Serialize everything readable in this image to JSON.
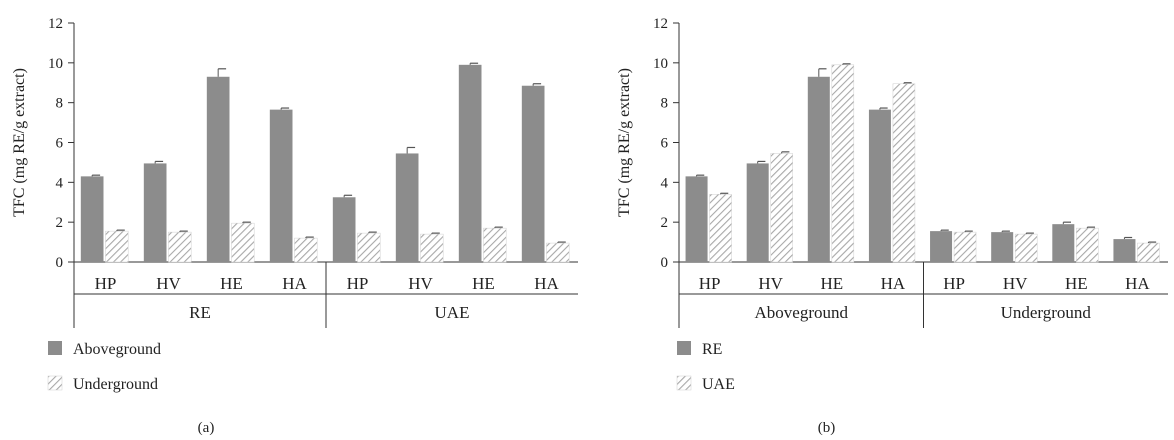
{
  "chart_data": [
    {
      "type": "bar",
      "panel_label": "(a)",
      "ylabel": "TFC (mg RE/g extract)",
      "ylim": [
        0,
        12
      ],
      "yticks": [
        "0",
        "2",
        "4",
        "6",
        "8",
        "10",
        "12"
      ],
      "categories": [
        "HP",
        "HV",
        "HE",
        "HA",
        "HP",
        "HV",
        "HE",
        "HA"
      ],
      "groups": [
        "RE",
        "UAE"
      ],
      "series": [
        {
          "name": "Aboveground",
          "pattern": "solid",
          "color": "#8c8c8c",
          "values": [
            4.3,
            4.95,
            9.3,
            7.65,
            3.25,
            5.45,
            9.9,
            8.85
          ],
          "errors": [
            0.06,
            0.1,
            0.4,
            0.08,
            0.1,
            0.3,
            0.08,
            0.1
          ]
        },
        {
          "name": "Underground",
          "pattern": "hatched",
          "color": "#bdbdbd",
          "values": [
            1.55,
            1.5,
            1.95,
            1.2,
            1.45,
            1.4,
            1.7,
            0.95
          ],
          "errors": [
            0.05,
            0.05,
            0.05,
            0.05,
            0.05,
            0.05,
            0.05,
            0.05
          ]
        }
      ],
      "legend_position": "bottom-left"
    },
    {
      "type": "bar",
      "panel_label": "(b)",
      "ylabel": "TFC (mg RE/g extract)",
      "ylim": [
        0,
        12
      ],
      "yticks": [
        "0",
        "2",
        "4",
        "6",
        "8",
        "10",
        "12"
      ],
      "categories": [
        "HP",
        "HV",
        "HE",
        "HA",
        "HP",
        "HV",
        "HE",
        "HA"
      ],
      "groups": [
        "Aboveground",
        "Underground"
      ],
      "series": [
        {
          "name": "RE",
          "pattern": "solid",
          "color": "#8c8c8c",
          "values": [
            4.3,
            4.95,
            9.3,
            7.65,
            1.55,
            1.5,
            1.9,
            1.15
          ],
          "errors": [
            0.06,
            0.1,
            0.4,
            0.08,
            0.05,
            0.05,
            0.1,
            0.08
          ]
        },
        {
          "name": "UAE",
          "pattern": "hatched",
          "color": "#bdbdbd",
          "values": [
            3.4,
            5.45,
            9.9,
            8.95,
            1.5,
            1.4,
            1.7,
            0.95
          ],
          "errors": [
            0.05,
            0.08,
            0.05,
            0.05,
            0.05,
            0.05,
            0.05,
            0.05
          ]
        }
      ],
      "legend_position": "bottom-left"
    }
  ]
}
